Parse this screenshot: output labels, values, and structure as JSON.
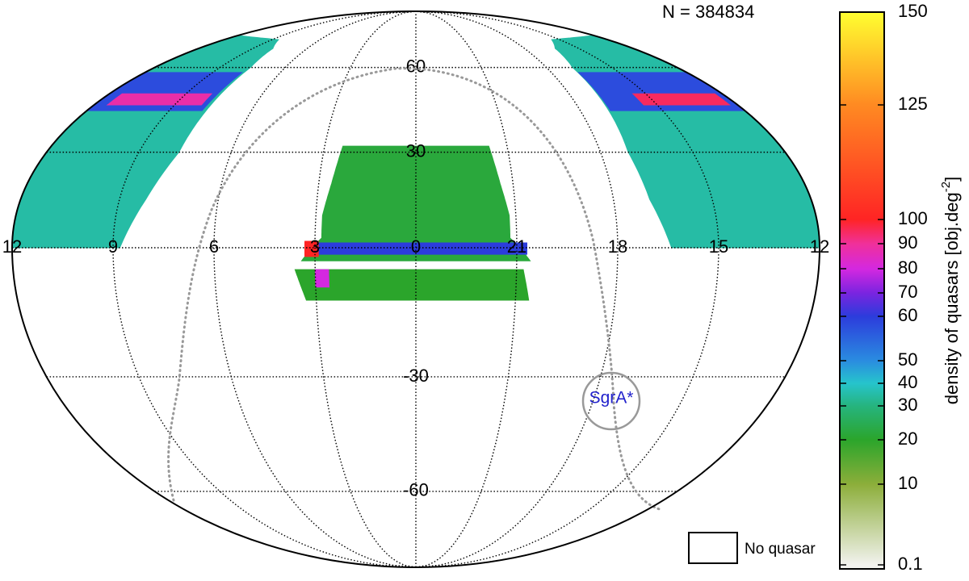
{
  "chart_data": {
    "type": "skymap",
    "annotation": "N =  384834",
    "ra_ticks": [
      12,
      9,
      6,
      3,
      0,
      21,
      18,
      15,
      12
    ],
    "dec_ticks": [
      60,
      30,
      -30,
      -60
    ],
    "colorbar": {
      "label": "density of quasars [obj.deg",
      "label_sup": "-2",
      "label_end": "]",
      "ticks": [
        0.1,
        10,
        20,
        30,
        40,
        50,
        60,
        70,
        80,
        90,
        100,
        125,
        150
      ],
      "colors": [
        "#f2f2ee",
        "#8cae3a",
        "#2ba52b",
        "#26b47e",
        "#26c4cc",
        "#2a8ce0",
        "#2c3cdc",
        "#7a24e0",
        "#d428e0",
        "#f0309a",
        "#ff2424",
        "#ff8a22",
        "#ffff30"
      ]
    },
    "no_data_label": "No quasar",
    "marker_label": "SgrA*",
    "regions": [
      {
        "ra": [
          12,
          8.8,
          8.2,
          7.7,
          7.6,
          7.9,
          8.6,
          12
        ],
        "dec": [
          0,
          0,
          15,
          30,
          60,
          68,
          72,
          74
        ],
        "value": 35
      },
      {
        "ra": [
          12,
          7.8,
          7.7,
          12
        ],
        "dec": [
          44,
          44,
          58,
          58
        ],
        "value": 58
      },
      {
        "ra": [
          11.5,
          8,
          8,
          11.5
        ],
        "dec": [
          46,
          46,
          50,
          50
        ],
        "value": 88
      },
      {
        "ra": [
          12,
          16.4,
          16.9,
          17.1,
          16.8,
          16.3,
          15.5,
          12
        ],
        "dec": [
          0,
          0,
          15,
          30,
          60,
          68,
          72,
          74
        ],
        "value": 35
      },
      {
        "ra": [
          12,
          16.9,
          16.8,
          12
        ],
        "dec": [
          44,
          44,
          58,
          58
        ],
        "value": 58
      },
      {
        "ra": [
          12.3,
          15.5,
          15.5,
          12.3
        ],
        "dec": [
          46,
          46,
          50,
          50
        ],
        "value": 95
      },
      {
        "ra": [
          3.4,
          2.8,
          2.8,
          2.6,
          2.4,
          21.6,
          21.4,
          21.2,
          21.2,
          20.6
        ],
        "dec": [
          -3,
          3,
          10,
          20,
          32,
          32,
          20,
          10,
          3,
          -3
        ],
        "value": 22
      },
      {
        "ra": [
          3.6,
          20.8,
          20.6,
          3.3
        ],
        "dec": [
          -5,
          -5,
          -12,
          -12
        ],
        "value": 20
      },
      {
        "ra": [
          3.3,
          20.7,
          20.7,
          3.3
        ],
        "dec": [
          1.5,
          1.5,
          -1.5,
          -1.5
        ],
        "value": 60
      },
      {
        "ra": [
          3.3,
          2.9,
          2.9,
          3.3
        ],
        "dec": [
          2,
          2,
          -2,
          -2
        ],
        "value": 100
      },
      {
        "ra": [
          3.0,
          2.6,
          2.6,
          3.0
        ],
        "dec": [
          -5,
          -5,
          -9,
          -9
        ],
        "value": 80
      }
    ]
  }
}
